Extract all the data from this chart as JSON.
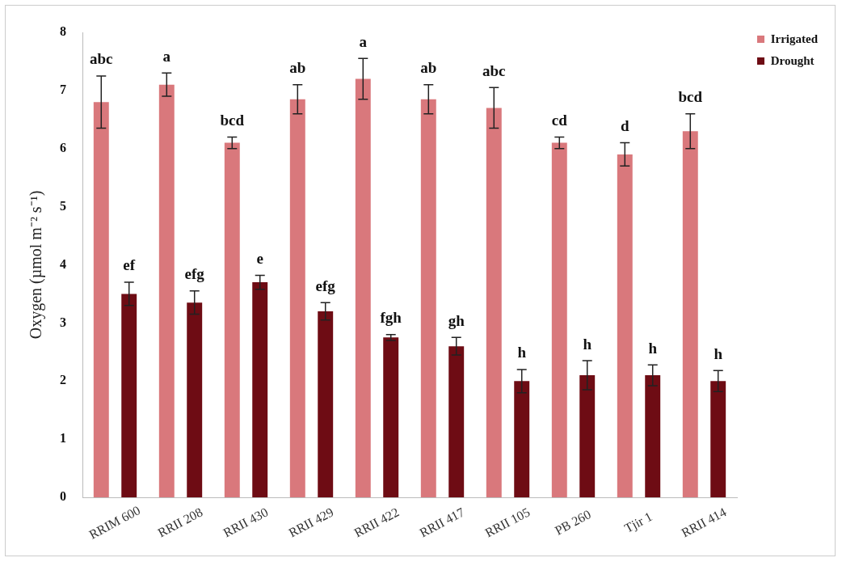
{
  "chart_data": {
    "type": "bar",
    "ylabel": "Oxygen (µmol m⁻² s⁻¹)",
    "categories": [
      "RRIM 600",
      "RRII 208",
      "RRII 430",
      "RRII 429",
      "RRII 422",
      "RRII 417",
      "RRII 105",
      "PB 260",
      "Tjir 1",
      "RRII 414"
    ],
    "series": [
      {
        "name": "Irrigated",
        "color": "#d9787c",
        "values": [
          6.8,
          7.1,
          6.1,
          6.85,
          7.2,
          6.85,
          6.7,
          6.1,
          5.9,
          6.3
        ],
        "errors": [
          0.45,
          0.2,
          0.1,
          0.25,
          0.35,
          0.25,
          0.35,
          0.1,
          0.2,
          0.3
        ],
        "value_labels": [
          "abc",
          "a",
          "bcd",
          "ab",
          "a",
          "ab",
          "abc",
          "cd",
          "d",
          "bcd"
        ]
      },
      {
        "name": "Drought",
        "color": "#6e0c14",
        "values": [
          3.5,
          3.35,
          3.7,
          3.2,
          2.75,
          2.6,
          2.0,
          2.1,
          2.1,
          2.0
        ],
        "errors": [
          0.2,
          0.2,
          0.12,
          0.15,
          0.05,
          0.15,
          0.2,
          0.25,
          0.18,
          0.18
        ],
        "value_labels": [
          "ef",
          "efg",
          "e",
          "efg",
          "fgh",
          "gh",
          "h",
          "h",
          "h",
          "h"
        ]
      }
    ],
    "ylim": [
      0,
      8
    ],
    "yticks": [
      0,
      1,
      2,
      3,
      4,
      5,
      6,
      7,
      8
    ],
    "grid": false,
    "legend": "top right"
  }
}
